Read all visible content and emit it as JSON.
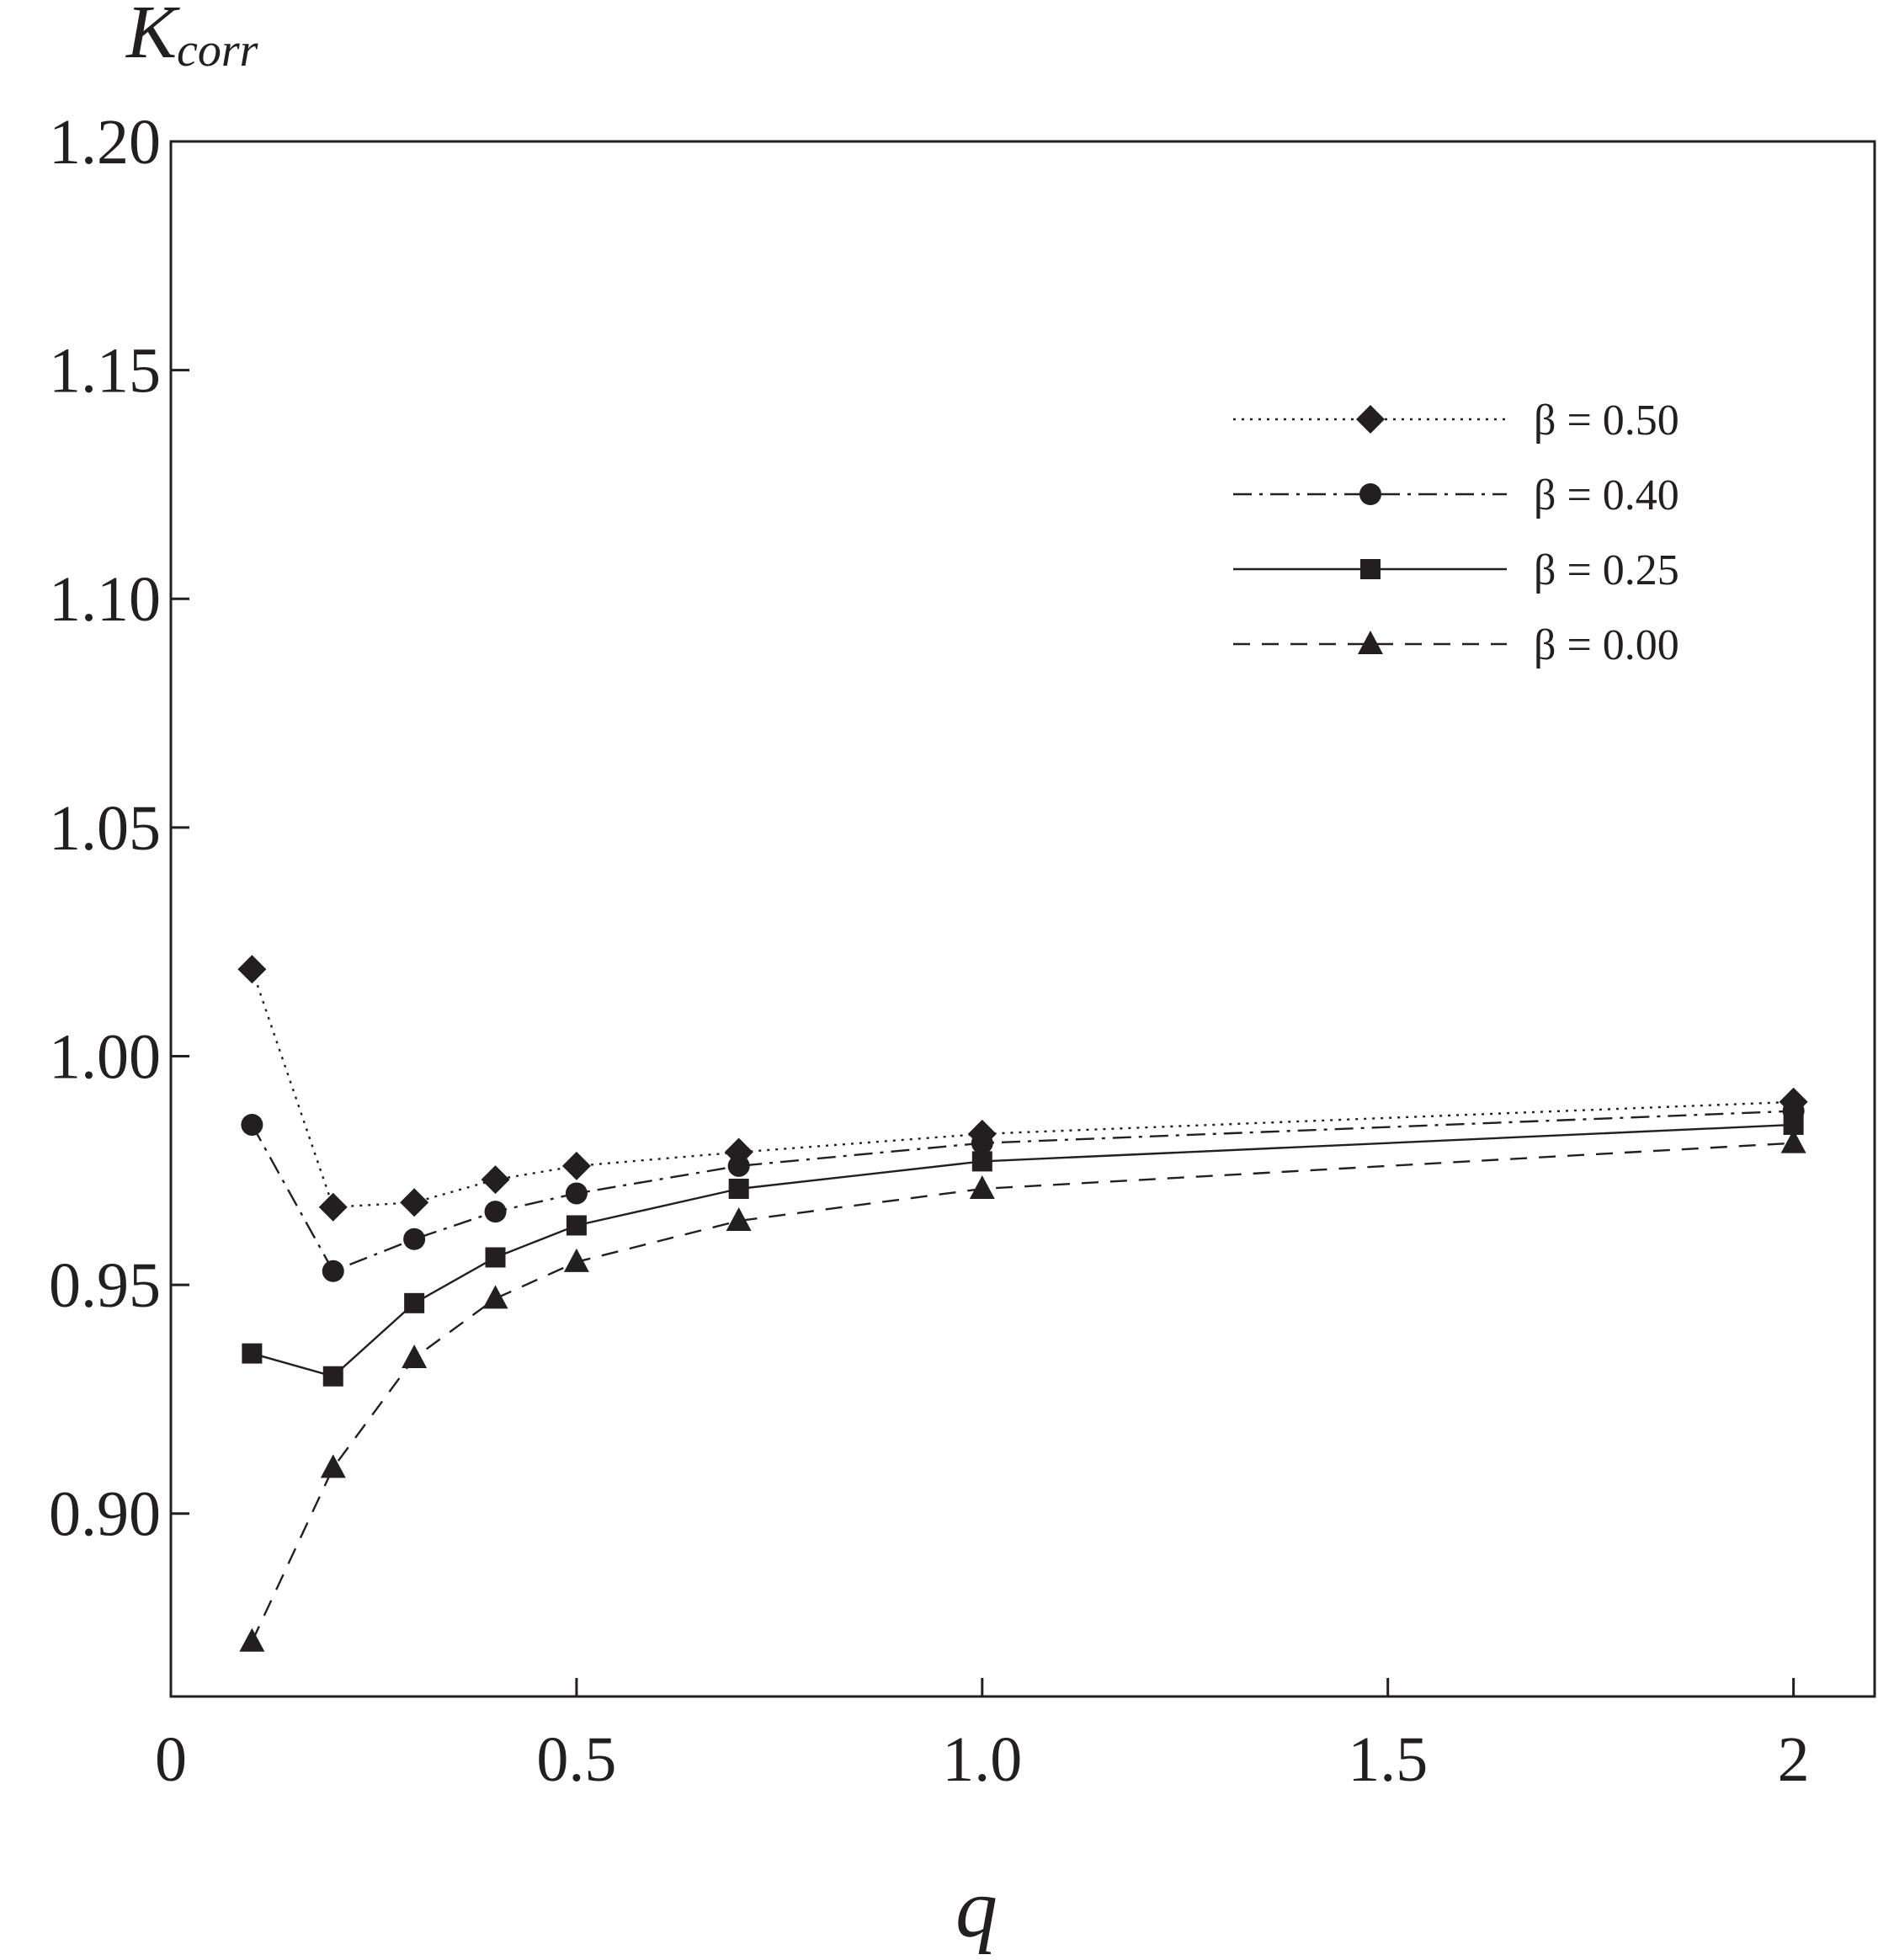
{
  "chart_data": {
    "type": "line",
    "xlabel": "q",
    "ylabel_main": "K",
    "ylabel_sub": "corr",
    "xlim": [
      0,
      2.1
    ],
    "ylim": [
      0.86,
      1.2
    ],
    "xticks": [
      0,
      0.5,
      1.0,
      1.5,
      2
    ],
    "xtick_labels": [
      "0",
      "0.5",
      "1.0",
      "1.5",
      "2"
    ],
    "yticks": [
      0.9,
      0.95,
      1.0,
      1.05,
      1.1,
      1.15,
      1.2
    ],
    "ytick_labels": [
      "0.90",
      "0.95",
      "1.00",
      "1.05",
      "1.10",
      "1.15",
      "1.20"
    ],
    "grid": false,
    "legend_position": "top-right",
    "x": [
      0.1,
      0.2,
      0.3,
      0.4,
      0.5,
      0.7,
      1.0,
      2.0
    ],
    "series": [
      {
        "name": "β = 0.50",
        "marker": "diamond",
        "line_style": "dotted",
        "values": [
          1.019,
          0.967,
          0.968,
          0.973,
          0.976,
          0.979,
          0.983,
          0.99
        ]
      },
      {
        "name": "β = 0.40",
        "marker": "circle",
        "line_style": "dash-dot",
        "values": [
          0.985,
          0.953,
          0.96,
          0.966,
          0.97,
          0.976,
          0.981,
          0.988
        ]
      },
      {
        "name": "β = 0.25",
        "marker": "square",
        "line_style": "solid",
        "values": [
          0.935,
          0.93,
          0.946,
          0.956,
          0.963,
          0.971,
          0.977,
          0.985
        ]
      },
      {
        "name": "β = 0.00",
        "marker": "triangle",
        "line_style": "dashed",
        "values": [
          0.872,
          0.91,
          0.934,
          0.947,
          0.955,
          0.964,
          0.971,
          0.981
        ]
      }
    ],
    "colors": {
      "ink": "#231f20",
      "background": "#ffffff"
    }
  }
}
